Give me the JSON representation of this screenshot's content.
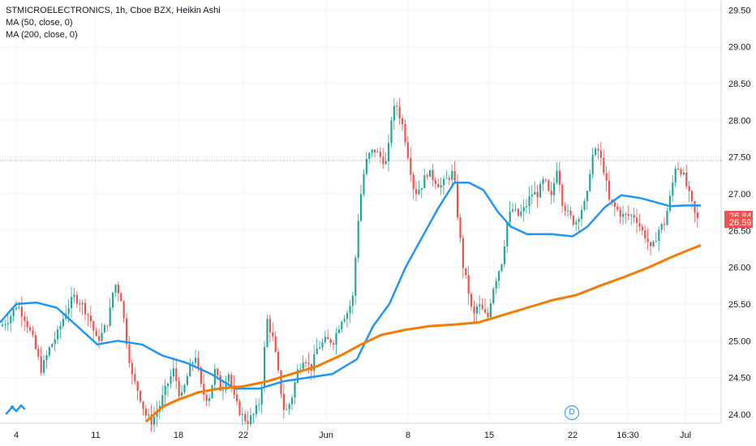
{
  "legend": {
    "title": "STMICROELECTRONICS, 1h, Cboe BZX, Heikin Ashi",
    "ma50": "MA (50, close, 0)",
    "ma200": "MA (200, close, 0)"
  },
  "price_badges": {
    "ma": "26.84",
    "last": "26.59"
  },
  "event_marker": "D",
  "colors": {
    "up": "#26a69a",
    "down": "#ef5350",
    "ma50": "#2196f3",
    "ma200": "#f57c00",
    "grid": "#f0f3fa",
    "axis_text": "#131722"
  },
  "chart_data": {
    "type": "candlestick",
    "title": "STMICROELECTRONICS, 1h, Cboe BZX, Heikin Ashi",
    "ylim": [
      23.9,
      29.58
    ],
    "y_ticks": [
      "29.50",
      "29.00",
      "28.50",
      "28.00",
      "27.50",
      "27.00",
      "26.50",
      "26.00",
      "25.50",
      "25.00",
      "24.50",
      "24.00"
    ],
    "x_ticks": [
      "4",
      "11",
      "18",
      "22",
      "Jun",
      "8",
      "15",
      "22",
      "16:30",
      "Jul"
    ],
    "last_price": 26.59,
    "ma50_value": 26.84,
    "candles_anchor": [
      [
        0,
        25.2
      ],
      [
        10,
        25.3
      ],
      [
        20,
        25.5
      ],
      [
        30,
        25.3
      ],
      [
        40,
        25.0
      ],
      [
        50,
        24.6
      ],
      [
        60,
        24.9
      ],
      [
        70,
        25.1
      ],
      [
        80,
        25.4
      ],
      [
        90,
        25.6
      ],
      [
        100,
        25.5
      ],
      [
        110,
        25.3
      ],
      [
        118,
        25.0
      ],
      [
        125,
        25.1
      ],
      [
        133,
        25.3
      ],
      [
        140,
        25.8
      ],
      [
        148,
        25.6
      ],
      [
        155,
        25.0
      ],
      [
        162,
        24.5
      ],
      [
        170,
        24.3
      ],
      [
        178,
        24.0
      ],
      [
        186,
        23.9
      ],
      [
        195,
        24.1
      ],
      [
        205,
        24.4
      ],
      [
        213,
        24.6
      ],
      [
        222,
        24.2
      ],
      [
        232,
        24.6
      ],
      [
        240,
        24.8
      ],
      [
        248,
        24.3
      ],
      [
        256,
        24.2
      ],
      [
        264,
        24.6
      ],
      [
        272,
        24.3
      ],
      [
        280,
        24.6
      ],
      [
        288,
        24.2
      ],
      [
        296,
        24.0
      ],
      [
        304,
        23.9
      ],
      [
        312,
        24.0
      ],
      [
        320,
        24.2
      ],
      [
        328,
        25.3
      ],
      [
        336,
        25.0
      ],
      [
        344,
        24.4
      ],
      [
        350,
        24.0
      ],
      [
        358,
        24.2
      ],
      [
        366,
        24.6
      ],
      [
        374,
        24.8
      ],
      [
        382,
        24.6
      ],
      [
        390,
        24.9
      ],
      [
        400,
        25.0
      ],
      [
        410,
        25.0
      ],
      [
        420,
        25.3
      ],
      [
        428,
        25.4
      ],
      [
        434,
        25.6
      ],
      [
        440,
        26.6
      ],
      [
        446,
        27.2
      ],
      [
        452,
        27.5
      ],
      [
        460,
        27.6
      ],
      [
        468,
        27.5
      ],
      [
        476,
        27.4
      ],
      [
        482,
        28.1
      ],
      [
        488,
        28.2
      ],
      [
        496,
        27.9
      ],
      [
        504,
        27.4
      ],
      [
        510,
        27.0
      ],
      [
        518,
        27.1
      ],
      [
        526,
        27.3
      ],
      [
        534,
        27.2
      ],
      [
        542,
        27.1
      ],
      [
        550,
        27.2
      ],
      [
        558,
        27.3
      ],
      [
        564,
        26.6
      ],
      [
        570,
        26.0
      ],
      [
        576,
        25.7
      ],
      [
        582,
        25.3
      ],
      [
        588,
        25.5
      ],
      [
        594,
        25.4
      ],
      [
        600,
        25.3
      ],
      [
        606,
        25.7
      ],
      [
        612,
        25.9
      ],
      [
        618,
        26.1
      ],
      [
        624,
        26.6
      ],
      [
        630,
        26.8
      ],
      [
        638,
        26.7
      ],
      [
        646,
        26.8
      ],
      [
        654,
        27.0
      ],
      [
        662,
        27.0
      ],
      [
        670,
        27.2
      ],
      [
        678,
        26.9
      ],
      [
        686,
        27.4
      ],
      [
        692,
        26.9
      ],
      [
        700,
        26.7
      ],
      [
        708,
        26.6
      ],
      [
        716,
        26.8
      ],
      [
        722,
        26.9
      ],
      [
        728,
        27.5
      ],
      [
        736,
        27.6
      ],
      [
        744,
        27.3
      ],
      [
        750,
        26.9
      ],
      [
        758,
        26.8
      ],
      [
        766,
        26.7
      ],
      [
        774,
        26.7
      ],
      [
        782,
        26.7
      ],
      [
        790,
        26.5
      ],
      [
        796,
        26.4
      ],
      [
        802,
        26.2
      ],
      [
        810,
        26.5
      ],
      [
        818,
        26.6
      ],
      [
        826,
        27.0
      ],
      [
        832,
        27.4
      ],
      [
        840,
        27.3
      ],
      [
        848,
        27.0
      ],
      [
        856,
        26.7
      ],
      [
        862,
        26.59
      ]
    ],
    "series": [
      {
        "values": [
          [
            0,
            25.25
          ],
          [
            20,
            25.5
          ],
          [
            45,
            25.52
          ],
          [
            70,
            25.45
          ],
          [
            95,
            25.2
          ],
          [
            120,
            24.95
          ],
          [
            145,
            25.0
          ],
          [
            175,
            24.95
          ],
          [
            200,
            24.8
          ],
          [
            230,
            24.7
          ],
          [
            260,
            24.55
          ],
          [
            290,
            24.35
          ],
          [
            320,
            24.35
          ],
          [
            350,
            24.45
          ],
          [
            380,
            24.5
          ],
          [
            410,
            24.55
          ],
          [
            440,
            24.75
          ],
          [
            460,
            25.2
          ],
          [
            480,
            25.5
          ],
          [
            500,
            26.0
          ],
          [
            520,
            26.4
          ],
          [
            540,
            26.8
          ],
          [
            560,
            27.15
          ],
          [
            578,
            27.15
          ],
          [
            596,
            27.05
          ],
          [
            614,
            26.75
          ],
          [
            630,
            26.55
          ],
          [
            650,
            26.45
          ],
          [
            680,
            26.45
          ],
          [
            706,
            26.42
          ],
          [
            724,
            26.55
          ],
          [
            746,
            26.82
          ],
          [
            766,
            26.98
          ],
          [
            790,
            26.94
          ],
          [
            810,
            26.88
          ],
          [
            826,
            26.83
          ],
          [
            844,
            26.84
          ],
          [
            864,
            26.84
          ]
        ]
      },
      {
        "values": [
          [
            180,
            23.9
          ],
          [
            200,
            24.1
          ],
          [
            220,
            24.2
          ],
          [
            245,
            24.3
          ],
          [
            270,
            24.35
          ],
          [
            300,
            24.38
          ],
          [
            330,
            24.45
          ],
          [
            360,
            24.55
          ],
          [
            390,
            24.65
          ],
          [
            420,
            24.8
          ],
          [
            445,
            24.95
          ],
          [
            470,
            25.08
          ],
          [
            500,
            25.15
          ],
          [
            530,
            25.2
          ],
          [
            560,
            25.22
          ],
          [
            590,
            25.25
          ],
          [
            620,
            25.35
          ],
          [
            650,
            25.45
          ],
          [
            680,
            25.55
          ],
          [
            710,
            25.62
          ],
          [
            740,
            25.75
          ],
          [
            770,
            25.87
          ],
          [
            800,
            26.0
          ],
          [
            830,
            26.15
          ],
          [
            864,
            26.3
          ]
        ]
      }
    ]
  }
}
